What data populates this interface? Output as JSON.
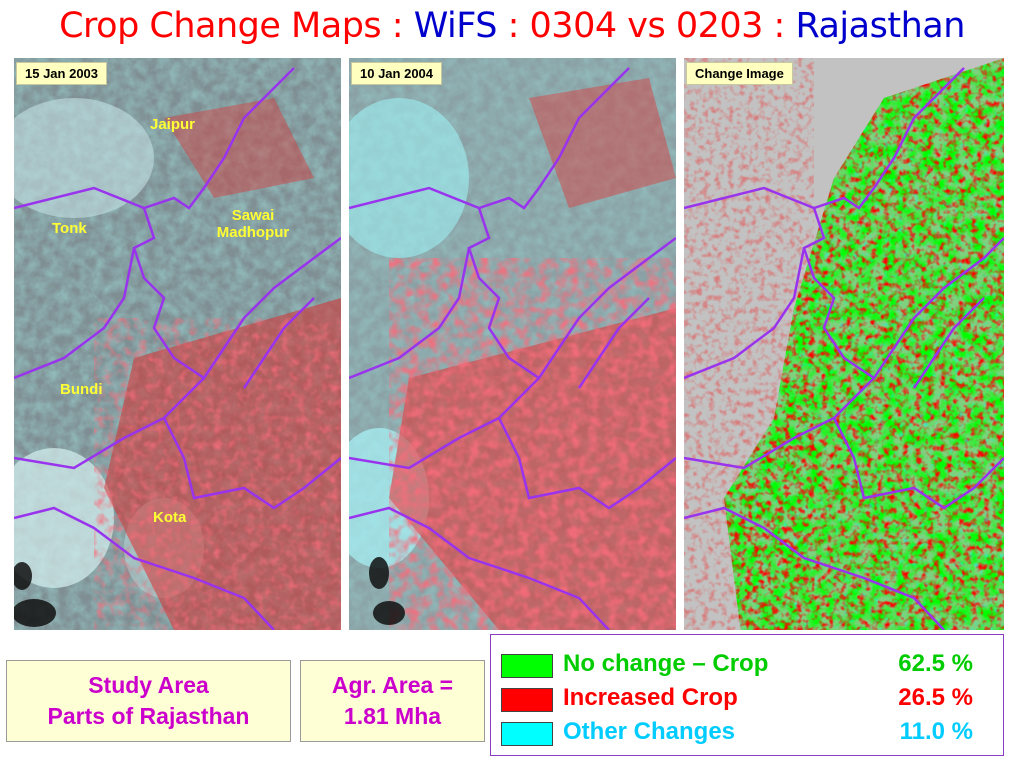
{
  "title": {
    "part1": "Crop Change Maps : ",
    "part2": "WiFS",
    "part3": " : 0304 vs 0203 : ",
    "part4": "Rajasthan",
    "color_red": "#ff0000",
    "color_blue": "#0000cc"
  },
  "panels": [
    {
      "label": "15 Jan 2003"
    },
    {
      "label": "10 Jan 2004"
    },
    {
      "label": "Change Image"
    }
  ],
  "places": {
    "jaipur": "Jaipur",
    "tonk": "Tonk",
    "sawai": "Sawai",
    "madhopur": "Madhopur",
    "bundi": "Bundi",
    "kota": "Kota"
  },
  "study_area": {
    "line1": "Study Area",
    "line2": "Parts of Rajasthan",
    "color": "#cc00cc"
  },
  "agr_area": {
    "line1": "Agr. Area =",
    "line2": "1.81 Mha",
    "color": "#cc00cc"
  },
  "legend": [
    {
      "label": "No change – Crop",
      "value": "62.5 %",
      "swatch": "#00ff00",
      "text_color": "#00cc00"
    },
    {
      "label": "Increased Crop",
      "value": "26.5 %",
      "swatch": "#ff0000",
      "text_color": "#ff0000"
    },
    {
      "label": "Other Changes",
      "value": "11.0 %",
      "swatch": "#00ffff",
      "text_color": "#00ccff"
    }
  ]
}
